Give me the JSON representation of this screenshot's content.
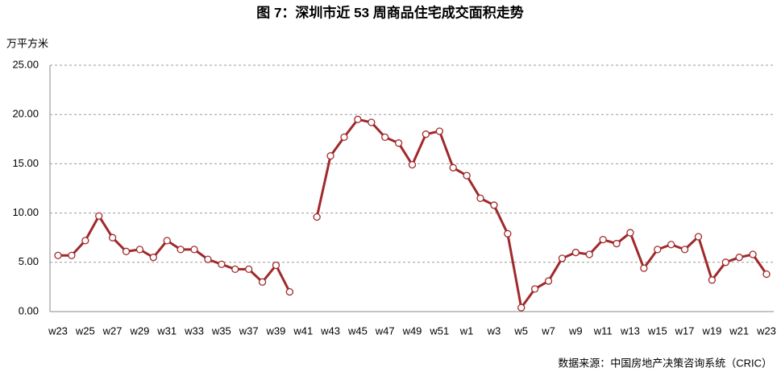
{
  "chart_data": {
    "type": "line",
    "title": "图 7：深圳市近 53 周商品住宅成交面积走势",
    "y_label": "万平方米",
    "source": "数据来源：中国房地产决策咨询系统（CRIC）",
    "categories": [
      "w23",
      null,
      "w25",
      null,
      "w27",
      null,
      "w29",
      null,
      "w31",
      null,
      "w33",
      null,
      "w35",
      null,
      "w37",
      null,
      "w39",
      null,
      "w41",
      null,
      "w43",
      null,
      "w45",
      null,
      "w47",
      null,
      "w49",
      null,
      "w51",
      null,
      "w1",
      null,
      "w3",
      null,
      "w5",
      null,
      "w7",
      null,
      "w9",
      null,
      "w11",
      null,
      "w13",
      null,
      "w15",
      null,
      "w17",
      null,
      "w19",
      null,
      "w21",
      null,
      "w23"
    ],
    "series": [
      {
        "name": "成交面积",
        "color": "#a0292b",
        "values": [
          5.7,
          5.7,
          7.2,
          9.7,
          7.5,
          6.1,
          6.3,
          5.5,
          7.2,
          6.3,
          6.3,
          5.3,
          4.8,
          4.3,
          4.3,
          3.0,
          4.7,
          2.0,
          null,
          9.6,
          15.8,
          17.7,
          19.5,
          19.2,
          17.7,
          17.1,
          14.9,
          18.0,
          18.3,
          14.6,
          13.8,
          11.5,
          10.8,
          7.9,
          0.4,
          2.3,
          3.1,
          5.4,
          6.0,
          5.8,
          7.3,
          6.9,
          8.0,
          4.4,
          6.3,
          6.8,
          6.3,
          7.6,
          3.2,
          5.0,
          5.5,
          5.8,
          3.8
        ]
      }
    ],
    "ylim": [
      0,
      25
    ],
    "yticks": [
      {
        "value": 0,
        "label": "0.00"
      },
      {
        "value": 5,
        "label": "5.00"
      },
      {
        "value": 10,
        "label": "10.00"
      },
      {
        "value": 15,
        "label": "15.00"
      },
      {
        "value": 20,
        "label": "20.00"
      },
      {
        "value": 25,
        "label": "25.00"
      }
    ],
    "grid": true
  }
}
